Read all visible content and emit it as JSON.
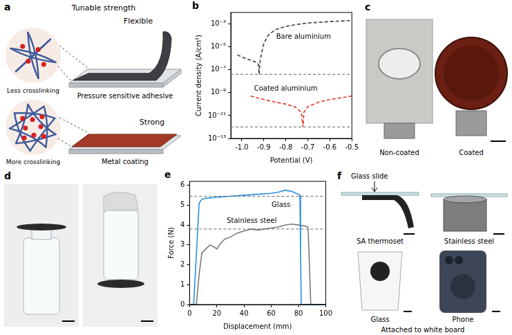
{
  "panels": {
    "a": {
      "letter": "a",
      "title": "Tunable strength",
      "top": {
        "network": "Less crosslinking",
        "property": "Flexible",
        "product": "Pressure sensitive adhesive"
      },
      "bottom": {
        "network": "More crosslinking",
        "property": "Strong",
        "product": "Metal coating"
      }
    },
    "c": {
      "letter": "c",
      "captions": [
        "Non-coated",
        "Coated"
      ]
    },
    "d": {
      "letter": "d"
    },
    "f": {
      "letter": "f",
      "callout": "Glass slide",
      "captions": [
        "SA thermoset",
        "Stainless steel",
        "Glass",
        "Phone"
      ],
      "footer": "Attached to white board"
    }
  },
  "chart_data": [
    {
      "panel": "b",
      "type": "line",
      "x_label": "Potential (V)",
      "y_label": "Current density (A/cm²)",
      "xlim": [
        -1.05,
        -0.5
      ],
      "xticks": [
        {
          "value": -1,
          "label": "-1.0"
        },
        -0.9,
        -0.8,
        -0.7,
        -0.6,
        -0.5
      ],
      "ylim": [
        1e-13,
        0.01
      ],
      "yticks": [
        {
          "value": 1e-13,
          "label": "10⁻¹³"
        },
        {
          "value": 1e-11,
          "label": "10⁻¹¹"
        },
        {
          "value": 1e-09,
          "label": "10⁻⁹"
        },
        {
          "value": 1e-07,
          "label": "10⁻⁷"
        },
        {
          "value": 1e-05,
          "label": "10⁻⁵"
        },
        {
          "value": 0.001,
          "label": "10⁻³"
        }
      ],
      "log": "y",
      "grid": false,
      "series": [
        {
          "name": "Bare aluminium",
          "color": "#404040",
          "line_style": "dashed",
          "x": [
            -1.02,
            -1.0,
            -0.98,
            -0.96,
            -0.94,
            -0.925,
            -0.921,
            -0.918,
            -0.91,
            -0.9,
            -0.88,
            -0.85,
            -0.8,
            -0.75,
            -0.7,
            -0.6,
            -0.5
          ],
          "values": [
            2e-06,
            1.3e-06,
            9e-07,
            7e-07,
            5e-07,
            3e-07,
            4e-08,
            4e-07,
            3e-06,
            2e-05,
            0.0001,
            0.0003,
            0.0006,
            0.0009,
            0.0012,
            0.0016,
            0.002
          ]
        },
        {
          "name": "Coated aluminium",
          "color": "#e8342b",
          "line_style": "dashed",
          "x": [
            -0.96,
            -0.94,
            -0.9,
            -0.85,
            -0.8,
            -0.76,
            -0.73,
            -0.722,
            -0.718,
            -0.7,
            -0.65,
            -0.6,
            -0.55,
            -0.5
          ],
          "values": [
            5e-10,
            4e-10,
            2.5e-10,
            1.5e-10,
            1e-10,
            6e-11,
            2e-11,
            1e-12,
            2e-11,
            6e-11,
            1.5e-10,
            2.5e-10,
            3.5e-10,
            5e-10
          ]
        }
      ],
      "reference_lines": [
        4e-08,
        1e-12
      ]
    },
    {
      "panel": "e",
      "type": "line",
      "x_label": "Displacement (mm)",
      "y_label": "Force (N)",
      "xlim": [
        0,
        100
      ],
      "xticks": [
        0,
        20,
        40,
        60,
        80,
        100
      ],
      "ylim": [
        0,
        6.2
      ],
      "yticks": [
        0,
        1,
        2,
        3,
        4,
        5,
        6
      ],
      "grid": false,
      "series": [
        {
          "name": "Glass",
          "color": "#2a8fe0",
          "line_style": "solid",
          "x": [
            0,
            3,
            5,
            7,
            9,
            12,
            20,
            30,
            40,
            50,
            60,
            65,
            70,
            75,
            78,
            80,
            81,
            81.5,
            82,
            100
          ],
          "values": [
            0,
            0,
            2.5,
            5.1,
            5.3,
            5.35,
            5.4,
            5.45,
            5.5,
            5.55,
            5.6,
            5.65,
            5.75,
            5.7,
            5.6,
            5.55,
            5.5,
            2.5,
            0,
            0
          ]
        },
        {
          "name": "Stainless steel",
          "color": "#7a7a7a",
          "line_style": "solid",
          "x": [
            0,
            5,
            7,
            9,
            12,
            15,
            18,
            20,
            23,
            26,
            30,
            35,
            40,
            45,
            50,
            55,
            60,
            65,
            70,
            75,
            80,
            85,
            87,
            88,
            89,
            100
          ],
          "values": [
            0,
            0,
            1.5,
            2.6,
            2.8,
            3.0,
            2.9,
            2.8,
            3.1,
            3.3,
            3.4,
            3.6,
            3.7,
            3.8,
            3.75,
            3.8,
            3.85,
            3.9,
            4.0,
            4.05,
            4.0,
            3.95,
            3.9,
            2.0,
            0,
            0
          ]
        }
      ],
      "reference_lines": [
        5.45,
        3.8
      ]
    }
  ]
}
